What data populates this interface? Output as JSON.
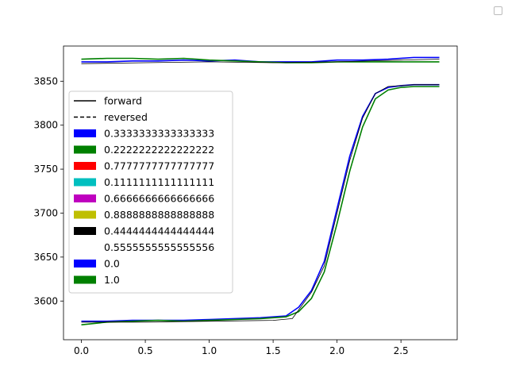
{
  "chart_data": {
    "type": "line",
    "title": "",
    "xlabel": "",
    "ylabel": "",
    "xlim": [
      -0.14,
      2.94
    ],
    "ylim": [
      3556,
      3890
    ],
    "x_ticks": [
      0.0,
      0.5,
      1.0,
      1.5,
      2.0,
      2.5
    ],
    "x_tick_labels": [
      "0.0",
      "0.5",
      "1.0",
      "1.5",
      "2.0",
      "2.5"
    ],
    "y_ticks": [
      3600,
      3650,
      3700,
      3750,
      3800,
      3850
    ],
    "y_tick_labels": [
      "3600",
      "3650",
      "3700",
      "3750",
      "3800",
      "3850"
    ],
    "grid": false,
    "legend_position": "center-left",
    "legend": [
      {
        "label": "forward",
        "kind": "solid-line",
        "color": "#000000"
      },
      {
        "label": "reversed",
        "kind": "dashed-line",
        "color": "#000000"
      },
      {
        "label": "0.3333333333333333",
        "kind": "patch",
        "color": "#0000ff"
      },
      {
        "label": "0.2222222222222222",
        "kind": "patch",
        "color": "#008000"
      },
      {
        "label": "0.7777777777777777",
        "kind": "patch",
        "color": "#ff0000"
      },
      {
        "label": "0.1111111111111111",
        "kind": "patch",
        "color": "#00bfbf"
      },
      {
        "label": "0.6666666666666666",
        "kind": "patch",
        "color": "#bf00bf"
      },
      {
        "label": "0.8888888888888888",
        "kind": "patch",
        "color": "#bfbf00"
      },
      {
        "label": "0.4444444444444444",
        "kind": "patch",
        "color": "#000000"
      },
      {
        "label": "0.5555555555555556",
        "kind": "patch",
        "color": "#ffffff"
      },
      {
        "label": "0.0",
        "kind": "patch",
        "color": "#0000ff"
      },
      {
        "label": "1.0",
        "kind": "patch",
        "color": "#008000"
      }
    ],
    "series": [
      {
        "color": "#0000ff",
        "style": "solid",
        "x": [
          0.0,
          0.2,
          0.4,
          0.6,
          0.8,
          1.0,
          1.2,
          1.4,
          1.6,
          1.7,
          1.8,
          1.9,
          2.0,
          2.1,
          2.2,
          2.3,
          2.4,
          2.5,
          2.6,
          2.7,
          2.8
        ],
        "y": [
          3577,
          3577,
          3578,
          3578,
          3578,
          3579,
          3580,
          3581,
          3583,
          3593,
          3612,
          3645,
          3705,
          3765,
          3810,
          3836,
          3843,
          3845,
          3846,
          3846,
          3846
        ]
      },
      {
        "color": "#008000",
        "style": "solid",
        "x": [
          0.0,
          0.2,
          0.4,
          0.6,
          0.8,
          1.0,
          1.2,
          1.4,
          1.6,
          1.7,
          1.8,
          1.9,
          2.0,
          2.1,
          2.2,
          2.3,
          2.4,
          2.5,
          2.6,
          2.7,
          2.8
        ],
        "y": [
          3573,
          3576,
          3577,
          3578,
          3577,
          3578,
          3579,
          3580,
          3582,
          3588,
          3603,
          3633,
          3688,
          3748,
          3798,
          3830,
          3840,
          3843,
          3844,
          3844,
          3844
        ]
      },
      {
        "color": "#000000",
        "style": "solid",
        "width": 0.8,
        "x": [
          0.0,
          0.5,
          1.0,
          1.5,
          1.65,
          1.8,
          1.9,
          2.0,
          2.1,
          2.2,
          2.3,
          2.4,
          2.6,
          2.8
        ],
        "y": [
          3576,
          3576,
          3577,
          3578,
          3580,
          3610,
          3640,
          3700,
          3760,
          3808,
          3836,
          3844,
          3846,
          3846
        ]
      },
      {
        "color": "#0000ff",
        "style": "solid",
        "x": [
          0.0,
          0.2,
          0.4,
          0.6,
          0.8,
          1.0,
          1.2,
          1.4,
          1.6,
          1.8,
          2.0,
          2.2,
          2.4,
          2.6,
          2.8
        ],
        "y": [
          3872,
          3872,
          3873,
          3873,
          3874,
          3873,
          3874,
          3872,
          3872,
          3872,
          3874,
          3874,
          3875,
          3877,
          3877
        ]
      },
      {
        "color": "#008000",
        "style": "solid",
        "x": [
          0.0,
          0.2,
          0.4,
          0.6,
          0.8,
          1.0,
          1.2,
          1.4,
          1.6,
          1.8,
          2.0,
          2.2,
          2.4,
          2.6,
          2.8
        ],
        "y": [
          3875,
          3876,
          3876,
          3875,
          3876,
          3874,
          3873,
          3872,
          3871,
          3871,
          3872,
          3872,
          3872,
          3872,
          3872
        ]
      },
      {
        "color": "#000000",
        "style": "solid",
        "width": 0.8,
        "x": [
          0.0,
          0.5,
          1.0,
          1.5,
          2.0,
          2.5,
          2.8
        ],
        "y": [
          3870,
          3871,
          3872,
          3871,
          3872,
          3874,
          3875
        ]
      }
    ]
  }
}
